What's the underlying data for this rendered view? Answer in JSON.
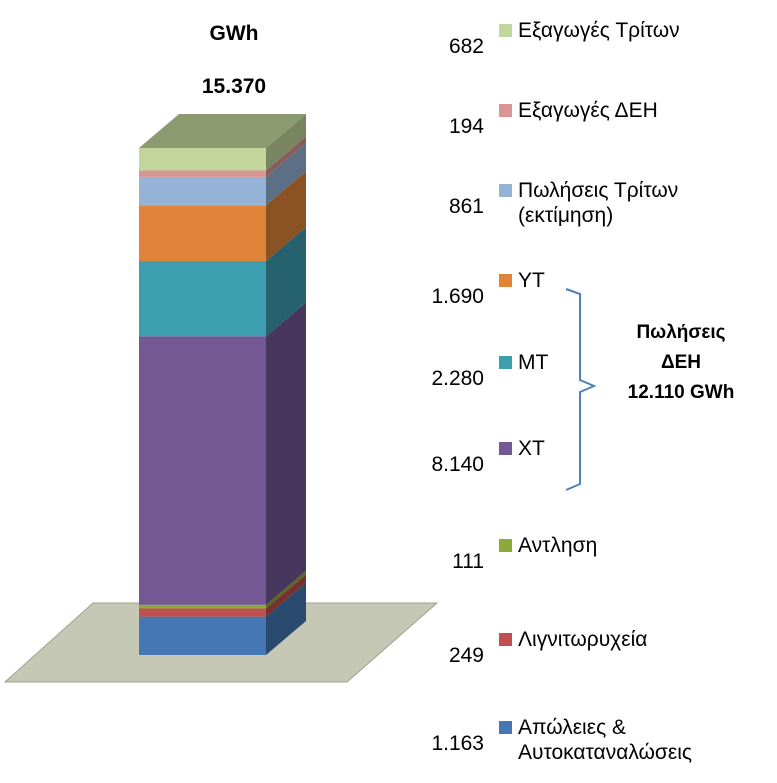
{
  "chart_data": {
    "type": "bar",
    "stacked": true,
    "unit_label": "GWh",
    "total_label": "15.370",
    "total": 15370,
    "colors": {
      "exports_third": "#c3d69b",
      "exports_ppc": "#d99694",
      "sales_third": "#95b3d7",
      "ht": "#e0843a",
      "mt": "#3d9eb0",
      "lt": "#735894",
      "pumping": "#8caa3c",
      "lignite": "#c0504d",
      "losses": "#4477b4",
      "floor": "#c4c8b4"
    },
    "series": [
      {
        "key": "losses",
        "name": "Απώλειες &",
        "name_line2": "Αυτοκαταναλώσεις",
        "value": 1163,
        "value_label": "1.163"
      },
      {
        "key": "lignite",
        "name": "Λιγνιτωρυχεία",
        "value": 249,
        "value_label": "249"
      },
      {
        "key": "pumping",
        "name": "Αντληση",
        "value": 111,
        "value_label": "111"
      },
      {
        "key": "lt",
        "name": "ΧΤ",
        "value": 8140,
        "value_label": "8.140"
      },
      {
        "key": "mt",
        "name": "ΜΤ",
        "value": 2280,
        "value_label": "2.280"
      },
      {
        "key": "ht",
        "name": "ΥΤ",
        "value": 1690,
        "value_label": "1.690"
      },
      {
        "key": "sales_third",
        "name": "Πωλήσεις Τρίτων",
        "name_line2": "(εκτίμηση)",
        "value": 861,
        "value_label": "861"
      },
      {
        "key": "exports_ppc",
        "name": "Εξαγωγές ΔΕΗ",
        "value": 194,
        "value_label": "194"
      },
      {
        "key": "exports_third",
        "name": "Εξαγωγές Τρίτων",
        "value": 682,
        "value_label": "682"
      }
    ],
    "bracket": {
      "line1": "Πωλήσεις",
      "line2": "ΔΕΗ",
      "line3": "12.110 GWh"
    }
  }
}
